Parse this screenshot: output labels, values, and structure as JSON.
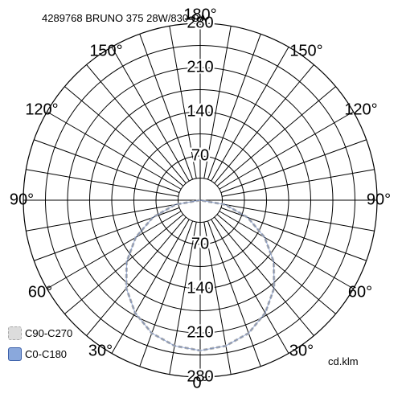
{
  "title": "4289768 BRUNO 375 28W/830 OA",
  "unit": "cd.klm",
  "chart_data": {
    "type": "polar",
    "title": "4289768 BRUNO 375 28W/830 OA",
    "r_max": 280,
    "ring_step": 35,
    "radial_labels": [
      "70",
      "140",
      "210",
      "280"
    ],
    "angle_labels": {
      "bottom": "0°",
      "top": "180°",
      "left": "90°",
      "right": "90°",
      "upper_left": [
        "150°",
        "120°"
      ],
      "upper_right": [
        "150°",
        "120°"
      ],
      "lower_left": [
        "60°",
        "30°"
      ],
      "lower_right": [
        "60°",
        "30°"
      ]
    },
    "series": [
      {
        "name": "C90-C270",
        "color": "#b4b4b4",
        "fill": "#d9d9d9",
        "dashed": true,
        "angles": [
          0,
          10,
          20,
          30,
          40,
          50,
          60,
          70,
          80,
          90
        ],
        "values": [
          238,
          234,
          224,
          206,
          182,
          152,
          118,
          80,
          40,
          0
        ]
      },
      {
        "name": "C0-C180",
        "color": "#4a6eb8",
        "fill": "#8aa8dc",
        "dashed": false,
        "angles": [
          0,
          10,
          20,
          30,
          40,
          50,
          60,
          70,
          80,
          90
        ],
        "values": [
          238,
          234,
          224,
          206,
          182,
          152,
          118,
          80,
          40,
          0
        ]
      }
    ],
    "legend": "bottom-left"
  }
}
